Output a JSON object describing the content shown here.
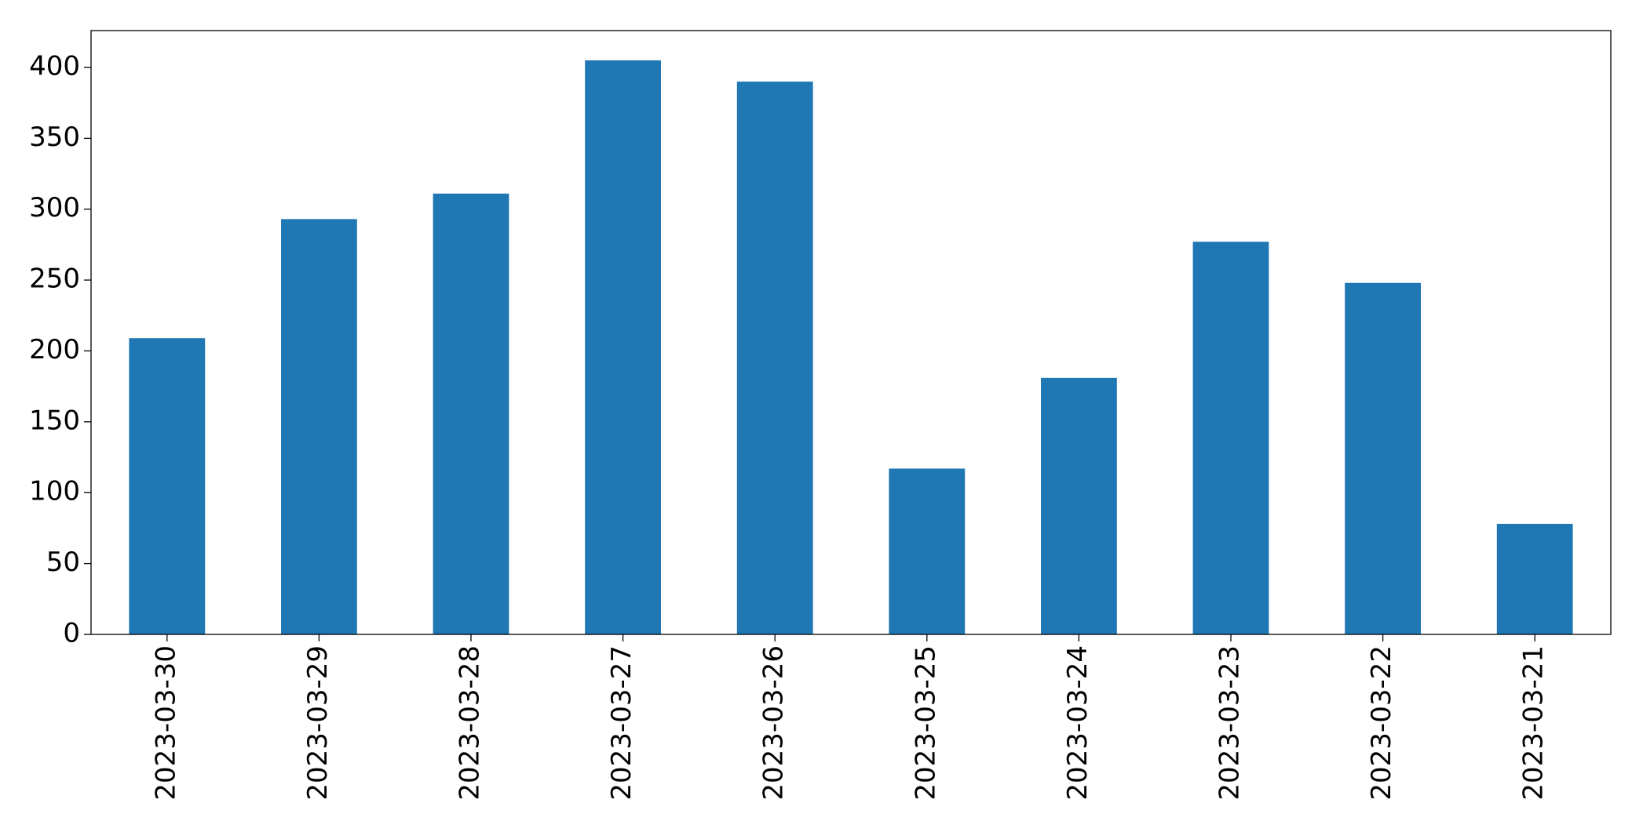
{
  "chart_data": {
    "type": "bar",
    "categories": [
      "2023-03-30",
      "2023-03-29",
      "2023-03-28",
      "2023-03-27",
      "2023-03-26",
      "2023-03-25",
      "2023-03-24",
      "2023-03-23",
      "2023-03-22",
      "2023-03-21"
    ],
    "values": [
      209,
      293,
      311,
      405,
      390,
      117,
      181,
      277,
      248,
      78
    ],
    "color": "#1f77b4",
    "ylim": [
      0,
      426
    ],
    "yticks": [
      0,
      50,
      100,
      150,
      200,
      250,
      300,
      350,
      400
    ],
    "grid": false
  }
}
